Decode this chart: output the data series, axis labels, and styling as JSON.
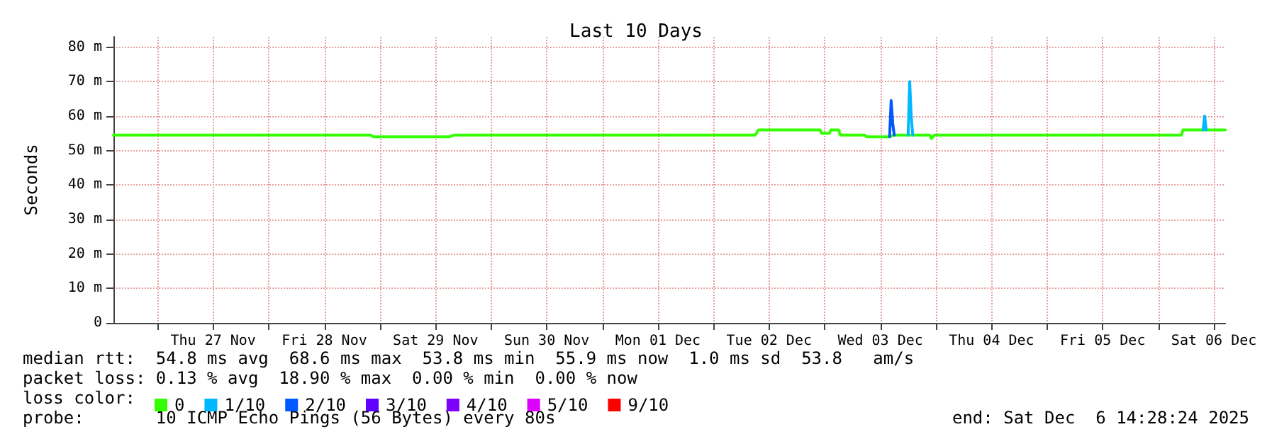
{
  "chart_data": {
    "type": "line",
    "title": "Last 10 Days",
    "ylabel": "Seconds",
    "legend_title": "loss color:",
    "legend": "bottom left",
    "grid": true,
    "marker": "none",
    "line_style": "solid",
    "xlim": [
      "2025-11-26T14:28",
      "2025-12-06T14:28"
    ],
    "xticks": [
      {
        "value": "2025-11-27T00:00",
        "label": null
      },
      {
        "value": "2025-11-27T12:00",
        "label": "Thu 27 Nov"
      },
      {
        "value": "2025-11-28T00:00",
        "label": null
      },
      {
        "value": "2025-11-28T12:00",
        "label": "Fri 28 Nov"
      },
      {
        "value": "2025-11-29T00:00",
        "label": null
      },
      {
        "value": "2025-11-29T12:00",
        "label": "Sat 29 Nov"
      },
      {
        "value": "2025-11-30T00:00",
        "label": null
      },
      {
        "value": "2025-11-30T12:00",
        "label": "Sun 30 Nov"
      },
      {
        "value": "2025-12-01T00:00",
        "label": null
      },
      {
        "value": "2025-12-01T12:00",
        "label": "Mon 01 Dec"
      },
      {
        "value": "2025-12-02T00:00",
        "label": null
      },
      {
        "value": "2025-12-02T12:00",
        "label": "Tue 02 Dec"
      },
      {
        "value": "2025-12-03T00:00",
        "label": null
      },
      {
        "value": "2025-12-03T12:00",
        "label": "Wed 03 Dec"
      },
      {
        "value": "2025-12-04T00:00",
        "label": null
      },
      {
        "value": "2025-12-04T12:00",
        "label": "Thu 04 Dec"
      },
      {
        "value": "2025-12-05T00:00",
        "label": null
      },
      {
        "value": "2025-12-05T12:00",
        "label": "Fri 05 Dec"
      },
      {
        "value": "2025-12-06T00:00",
        "label": null
      },
      {
        "value": "2025-12-06T12:00",
        "label": "Sat 06 Dec"
      }
    ],
    "ylim": [
      0,
      83
    ],
    "yticks": [
      0,
      {
        "value": 10,
        "label": "10 m"
      },
      {
        "value": 20,
        "label": "20 m"
      },
      {
        "value": 30,
        "label": "30 m"
      },
      {
        "value": 40,
        "label": "40 m"
      },
      {
        "value": 50,
        "label": "50 m"
      },
      {
        "value": 60,
        "label": "60 m"
      },
      {
        "value": 70,
        "label": "70 m"
      },
      {
        "value": 80,
        "label": "80 m"
      }
    ],
    "series": [
      {
        "name": "0",
        "color": "#33ff00",
        "x": [
          "2025-11-26T14:28",
          "2025-11-28T22:00",
          "2025-11-28T22:30",
          "2025-11-29T15:00",
          "2025-11-29T16:00",
          "2025-12-02T09:00",
          "2025-12-02T09:40",
          "2025-12-02T23:00",
          "2025-12-02T23:20",
          "2025-12-03T01:00",
          "2025-12-03T01:20",
          "2025-12-03T03:00",
          "2025-12-03T03:20",
          "2025-12-03T08:40",
          "2025-12-03T09:00",
          "2025-12-03T14:00",
          "2025-12-03T15:00",
          "2025-12-03T18:00",
          "2025-12-03T19:00",
          "2025-12-03T22:40",
          "2025-12-03T23:00",
          "2025-12-03T23:40",
          "2025-12-06T05:00",
          "2025-12-06T05:20",
          "2025-12-06T14:28"
        ],
        "values": [
          54.5,
          54.5,
          54,
          54,
          54.5,
          54.5,
          56,
          56,
          55,
          55,
          56,
          56,
          54.5,
          54.5,
          54,
          54,
          54.5,
          54.5,
          54.5,
          54.5,
          53.5,
          54.5,
          54.5,
          56,
          56
        ]
      },
      {
        "name": "1/10",
        "color": "#00b8ff",
        "x": [
          "2025-12-03T18:00",
          "2025-12-03T18:20",
          "2025-12-03T18:40",
          "2025-12-03T19:00",
          "2025-12-05T00:00",
          "2025-12-06T09:40",
          "2025-12-06T10:00",
          "2025-12-06T10:20"
        ],
        "values": [
          54.5,
          70,
          60,
          54.5,
          null,
          56,
          60,
          56
        ]
      },
      {
        "name": "2/10",
        "color": "#0059ff",
        "x": [
          "2025-12-03T14:00",
          "2025-12-03T14:20",
          "2025-12-03T14:40",
          "2025-12-03T15:00"
        ],
        "values": [
          54,
          64.5,
          58,
          54.5
        ]
      },
      {
        "name": "3/10",
        "color": "#5e00ff"
      },
      {
        "name": "4/10",
        "color": "#7e00ff"
      },
      {
        "name": "5/10",
        "color": "#dd00ff"
      },
      {
        "name": "9/10",
        "color": "#ff0000"
      }
    ],
    "annotations": [
      "median rtt:  54.8 ms avg  68.6 ms max  53.8 ms min  55.9 ms now  1.0 ms sd  53.8   am/s",
      "packet loss: 0.13 % avg  18.90 % max  0.00 % min  0.00 % now",
      "probe:       10 ICMP Echo Pings (56 Bytes) every 80s",
      "end: Sat Dec  6 14:28:24 2025"
    ]
  }
}
